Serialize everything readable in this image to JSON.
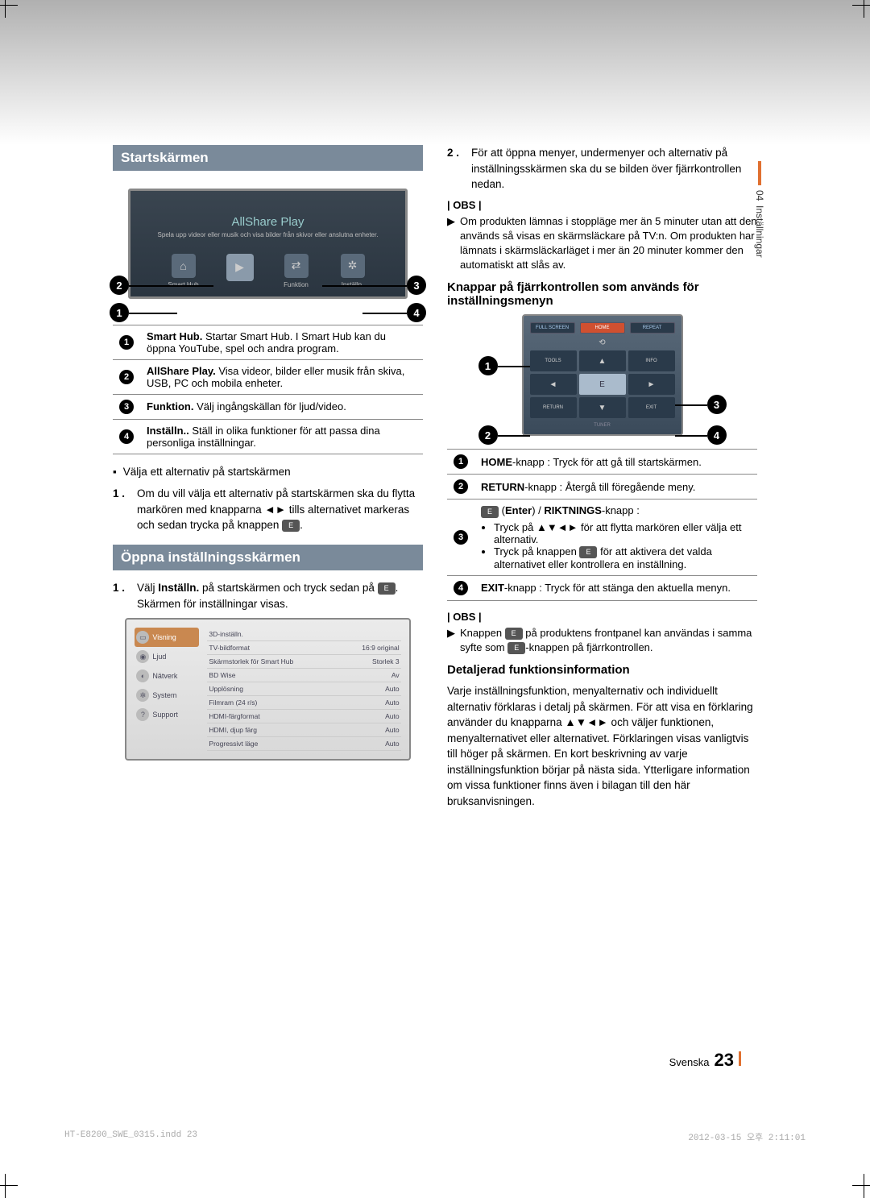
{
  "side_tab": {
    "chapter": "04",
    "title": "Inställningar"
  },
  "left": {
    "header1": "Startskärmen",
    "tv": {
      "title": "AllShare Play",
      "subtitle": "Spela upp videor eller musik och visa bilder från skivor eller anslutna enheter.",
      "icons": [
        "Smart Hub",
        "",
        "Funktion",
        "Inställn."
      ]
    },
    "desc": [
      {
        "n": "1",
        "bold": "Smart Hub.",
        "text": " Startar Smart Hub. I Smart Hub kan du öppna YouTube, spel och andra program."
      },
      {
        "n": "2",
        "bold": "AllShare Play.",
        "text": " Visa videor, bilder eller musik från skiva, USB, PC och mobila enheter."
      },
      {
        "n": "3",
        "bold": "Funktion.",
        "text": " Välj ingångskällan för ljud/video."
      },
      {
        "n": "4",
        "bold": "Inställn..",
        "text": " Ställ in olika funktioner för att passa dina personliga inställningar."
      }
    ],
    "bullet1": "Välja ett alternativ på startskärmen",
    "step1_num": "1 .",
    "step1": "Om du vill välja ett alternativ på startskärmen ska du flytta markören med knapparna ◄► tills alternativet markeras och sedan trycka på knappen ",
    "header2": "Öppna inställningsskärmen",
    "step2_num": "1 .",
    "step2a": "Välj ",
    "step2b": "Inställn.",
    "step2c": " på startskärmen och tryck sedan på ",
    "step2d": ". Skärmen för inställningar visas.",
    "settings": {
      "side": [
        {
          "label": "Visning",
          "icon": "▭"
        },
        {
          "label": "Ljud",
          "icon": "◉"
        },
        {
          "label": "Nätverk",
          "icon": "◐"
        },
        {
          "label": "System",
          "icon": "✲"
        },
        {
          "label": "Support",
          "icon": "?"
        }
      ],
      "rows": [
        {
          "l": "3D-inställn.",
          "r": ""
        },
        {
          "l": "TV-bildformat",
          "r": "16:9 original"
        },
        {
          "l": "Skärmstorlek för Smart Hub",
          "r": "Storlek 3"
        },
        {
          "l": "BD Wise",
          "r": "Av"
        },
        {
          "l": "Upplösning",
          "r": "Auto"
        },
        {
          "l": "Filmram (24 r/s)",
          "r": "Auto"
        },
        {
          "l": "HDMI-färgformat",
          "r": "Auto"
        },
        {
          "l": "HDMI, djup färg",
          "r": "Auto"
        },
        {
          "l": "Progressivt läge",
          "r": "Auto"
        }
      ]
    }
  },
  "right": {
    "step2_num": "2 .",
    "step2": "För att öppna menyer, undermenyer och alternativ på inställningsskärmen ska du se bilden över fjärrkontrollen nedan.",
    "obs_label": "| OBS |",
    "obs1": "Om produkten lämnas i stoppläge mer än 5 minuter utan att den används så visas en skärmsläckare på TV:n. Om produkten har lämnats i skärmsläckarläget i mer än 20 minuter kommer den automatiskt att slås av.",
    "subhead1": "Knappar på fjärrkontrollen som används för inställningsmenyn",
    "remote": {
      "row1": [
        "FULL SCREEN",
        "HOME",
        "REPEAT"
      ],
      "row2": [
        "TOOLS",
        "▲",
        "INFO"
      ],
      "row3": [
        "◄",
        "E",
        "►"
      ],
      "row4": [
        "RETURN",
        "▼",
        "EXIT"
      ],
      "tuner": "TUNER"
    },
    "remote_desc": [
      {
        "n": "1",
        "html": "HOME-knapp : Tryck för att gå till startskärmen.",
        "bold": "HOME"
      },
      {
        "n": "2",
        "html": "RETURN-knapp : Återgå till föregående meny.",
        "bold": "RETURN"
      },
      {
        "n": "3",
        "enter_line": " (Enter) / RIKTNINGS-knapp :",
        "bold3": "Enter",
        "bold3b": "RIKTNINGS",
        "b1": "Tryck på ▲▼◄► för att flytta markören eller välja ett alternativ.",
        "b2a": "Tryck på knappen ",
        "b2b": " för att aktivera det valda alternativet eller kontrollera en inställning."
      },
      {
        "n": "4",
        "html": "EXIT-knapp : Tryck för att stänga den aktuella menyn.",
        "bold": "EXIT"
      }
    ],
    "obs2a": "Knappen ",
    "obs2b": " på produktens frontpanel kan användas i samma syfte som ",
    "obs2c": "-knappen på fjärrkontrollen.",
    "subhead2": "Detaljerad funktionsinformation",
    "detail": "Varje inställningsfunktion, menyalternativ och individuellt alternativ förklaras i detalj på skärmen. För att visa en förklaring använder du knapparna ▲▼◄► och väljer funktionen, menyalternativet eller alternativet. Förklaringen visas vanligtvis till höger på skärmen. En kort beskrivning av varje inställningsfunktion börjar på nästa sida. Ytterligare information om vissa funktioner finns även i bilagan till den här bruksanvisningen."
  },
  "footer": {
    "lang": "Svenska",
    "page": "23"
  },
  "print": {
    "file": "HT-E8200_SWE_0315.indd   23",
    "ts": "2012-03-15   오후 2:11:01"
  }
}
